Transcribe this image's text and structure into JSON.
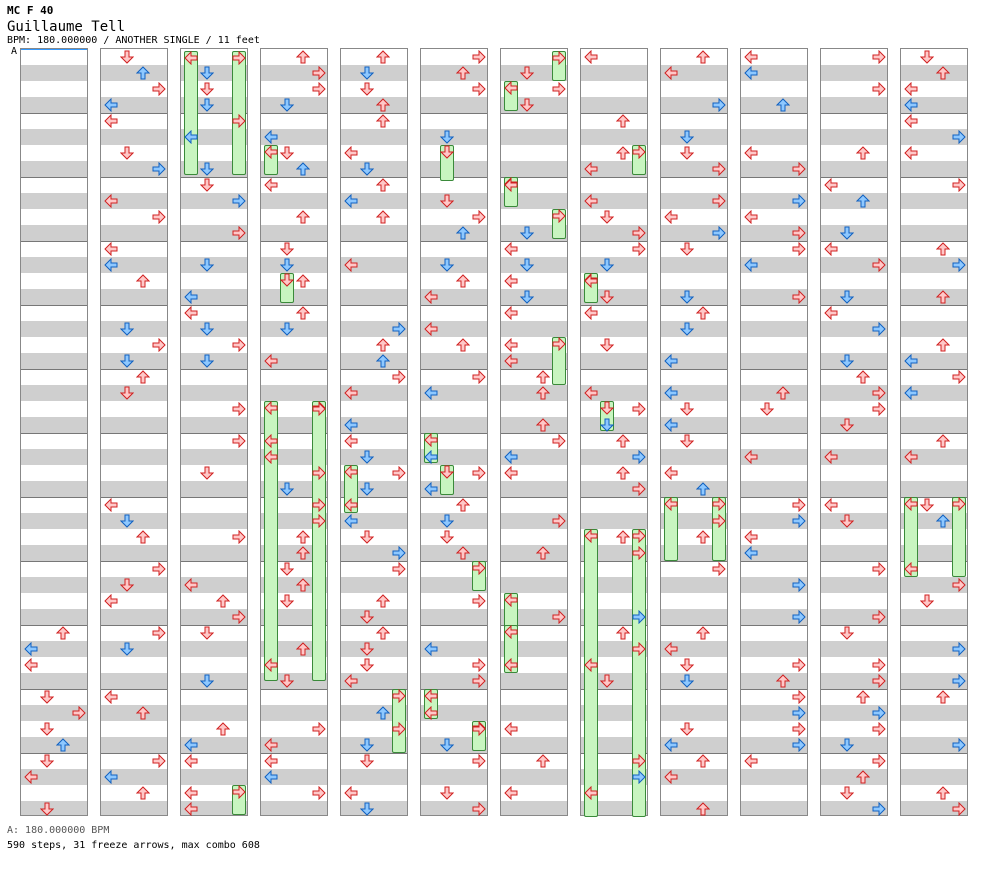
{
  "header": {
    "code": "MC F 40",
    "title": "Guillaume Tell",
    "meta": "BPM: 180.000000 / ANOTHER SINGLE / 11 feet",
    "marker": "A"
  },
  "footer": {
    "bpm_line": "A: 180.000000 BPM",
    "stats_line": "590 steps, 31 freeze arrows, max combo 608"
  },
  "colors": {
    "red_fill": "#ffc8c8",
    "red_stroke": "#d02020",
    "blue_fill": "#8ec8ff",
    "blue_stroke": "#1060c0",
    "freeze_fill": "#c8f5c0"
  },
  "icons": [
    "left-arrow-icon",
    "down-arrow-icon",
    "up-arrow-icon",
    "right-arrow-icon"
  ],
  "columns_count": 12,
  "lanes": [
    "L",
    "D",
    "U",
    "R"
  ]
}
